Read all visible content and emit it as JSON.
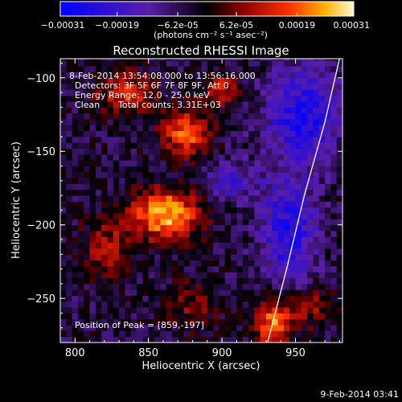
{
  "chart_data": {
    "type": "heatmap",
    "title": "Reconstructed RHESSI Image",
    "xlabel": "Heliocentric X (arcsec)",
    "ylabel": "Heliocentric Y (arcsec)",
    "xlim": [
      790,
      982
    ],
    "ylim": [
      -280,
      -87
    ],
    "x_ticks": [
      800,
      850,
      900,
      950
    ],
    "y_ticks": [
      -100,
      -150,
      -200,
      -250
    ],
    "colorbar": {
      "range": [
        -0.00031,
        0.00031
      ],
      "tick_values": [
        -0.00031,
        -0.00019,
        -6.2e-05,
        6.2e-05,
        0.00019,
        0.00031
      ],
      "tick_labels": [
        "-0.00031",
        "-0.00019",
        "-6.2e-05",
        "6.2e-05",
        "0.00019",
        "0.00031"
      ],
      "unit_label": "(photons cm⁻² s⁻¹ asec⁻²)"
    },
    "annotations": {
      "time": "8-Feb-2014 13:54:08.000 to 13:56:16.000",
      "detectors": "Detectors: 3F 5F 6F 7F 8F 9F, Att 0",
      "energy": "Energy Range: 12.0 - 25.0 keV",
      "clean": "Clean",
      "counts": "Total counts: 3.31E+03",
      "peak": "Position of Peak = [859,-197]"
    },
    "peak": [
      859,
      -197
    ],
    "limb_curve": [
      [
        980,
        -87
      ],
      [
        970,
        -130
      ],
      [
        956,
        -180
      ],
      [
        944,
        -230
      ],
      [
        931,
        -280
      ]
    ],
    "sources": [
      {
        "x": 862,
        "y": -193,
        "amp": 0.00031,
        "sx": 16,
        "sy": 12
      },
      {
        "x": 875,
        "y": -137,
        "amp": 0.00024,
        "sx": 11,
        "sy": 11
      },
      {
        "x": 835,
        "y": -110,
        "amp": 0.00018,
        "sx": 13,
        "sy": 10
      },
      {
        "x": 900,
        "y": -108,
        "amp": 0.00016,
        "sx": 9,
        "sy": 8
      },
      {
        "x": 935,
        "y": -267,
        "amp": 0.00026,
        "sx": 9,
        "sy": 11
      },
      {
        "x": 822,
        "y": -215,
        "amp": 0.00013,
        "sx": 12,
        "sy": 14
      },
      {
        "x": 960,
        "y": -255,
        "amp": 0.00012,
        "sx": 10,
        "sy": 10
      },
      {
        "x": 880,
        "y": -255,
        "amp": 0.0001,
        "sx": 12,
        "sy": 12
      }
    ],
    "negative_regions": [
      {
        "x": 955,
        "y": -125,
        "amp": 0.00022,
        "sx": 18,
        "sy": 22
      },
      {
        "x": 945,
        "y": -205,
        "amp": 0.0002,
        "sx": 14,
        "sy": 26
      },
      {
        "x": 905,
        "y": -170,
        "amp": 0.00014,
        "sx": 12,
        "sy": 10
      }
    ]
  },
  "footer": {
    "timestamp": "9-Feb-2014 03:41"
  },
  "colors": {
    "background": "#000000",
    "text": "#ffffff",
    "limb": "#ffffff"
  }
}
